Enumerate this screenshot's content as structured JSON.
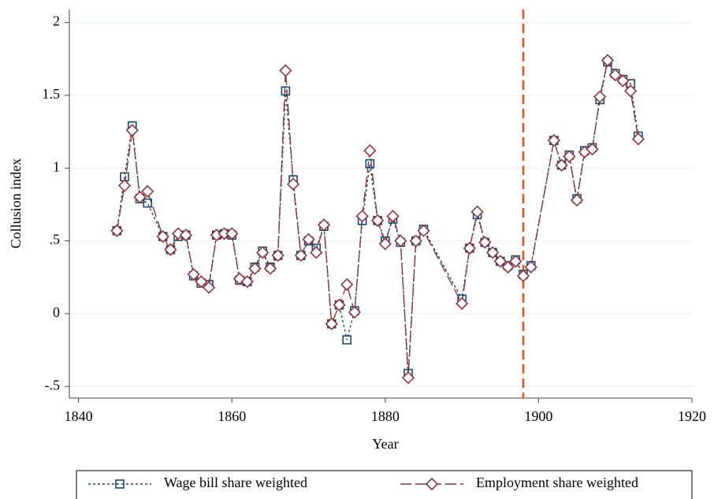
{
  "chart_data": {
    "type": "line",
    "x_label": "Year",
    "y_label": "Collusion index",
    "x": [
      1845,
      1846,
      1847,
      1848,
      1849,
      1851,
      1852,
      1853,
      1854,
      1855,
      1856,
      1857,
      1858,
      1859,
      1860,
      1861,
      1862,
      1863,
      1864,
      1865,
      1866,
      1867,
      1868,
      1869,
      1870,
      1871,
      1872,
      1873,
      1874,
      1875,
      1876,
      1877,
      1878,
      1879,
      1880,
      1881,
      1882,
      1883,
      1884,
      1885,
      1890,
      1891,
      1892,
      1893,
      1894,
      1895,
      1896,
      1897,
      1898,
      1899,
      1902,
      1903,
      1904,
      1905,
      1906,
      1907,
      1908,
      1909,
      1910,
      1911,
      1912,
      1913
    ],
    "series": [
      {
        "name": "Wage bill share weighted",
        "color": "#1a476f",
        "marker": "square",
        "values": [
          0.57,
          0.94,
          1.29,
          0.79,
          0.76,
          0.53,
          0.44,
          0.53,
          0.54,
          0.26,
          0.21,
          0.2,
          0.54,
          0.55,
          0.54,
          0.23,
          0.22,
          0.32,
          0.43,
          0.32,
          0.4,
          1.53,
          0.92,
          0.4,
          0.5,
          0.45,
          0.6,
          -0.07,
          0.06,
          -0.18,
          0.02,
          0.64,
          1.03,
          0.64,
          0.5,
          0.65,
          0.49,
          -0.41,
          0.5,
          0.58,
          0.1,
          0.45,
          0.68,
          0.49,
          0.42,
          0.36,
          0.33,
          0.37,
          0.27,
          0.33,
          1.19,
          1.02,
          1.09,
          0.79,
          1.12,
          1.14,
          1.47,
          1.73,
          1.65,
          1.61,
          1.58,
          1.22
        ]
      },
      {
        "name": "Employment share weighted",
        "color": "#90353b",
        "marker": "diamond",
        "values": [
          0.57,
          0.88,
          1.26,
          0.8,
          0.84,
          0.53,
          0.44,
          0.55,
          0.54,
          0.27,
          0.22,
          0.18,
          0.54,
          0.55,
          0.55,
          0.24,
          0.22,
          0.31,
          0.42,
          0.31,
          0.4,
          1.67,
          0.89,
          0.4,
          0.51,
          0.42,
          0.61,
          -0.07,
          0.06,
          0.2,
          0.01,
          0.67,
          1.12,
          0.64,
          0.48,
          0.67,
          0.5,
          -0.44,
          0.5,
          0.57,
          0.07,
          0.45,
          0.7,
          0.49,
          0.42,
          0.36,
          0.32,
          0.36,
          0.26,
          0.32,
          1.19,
          1.02,
          1.08,
          0.78,
          1.11,
          1.13,
          1.49,
          1.74,
          1.64,
          1.6,
          1.53,
          1.2
        ]
      }
    ],
    "vline": 1898,
    "vline_color": "#e8501f",
    "xlim": [
      1838.8,
      1920
    ],
    "xticks": [
      1840,
      1860,
      1880,
      1900,
      1920
    ],
    "ylim": [
      -0.58,
      2.09
    ],
    "yticks": [
      {
        "value": -0.5,
        "label": "-.5"
      },
      0,
      {
        "value": 0.5,
        "label": ".5"
      },
      1,
      1.5,
      2
    ],
    "grid": true
  }
}
